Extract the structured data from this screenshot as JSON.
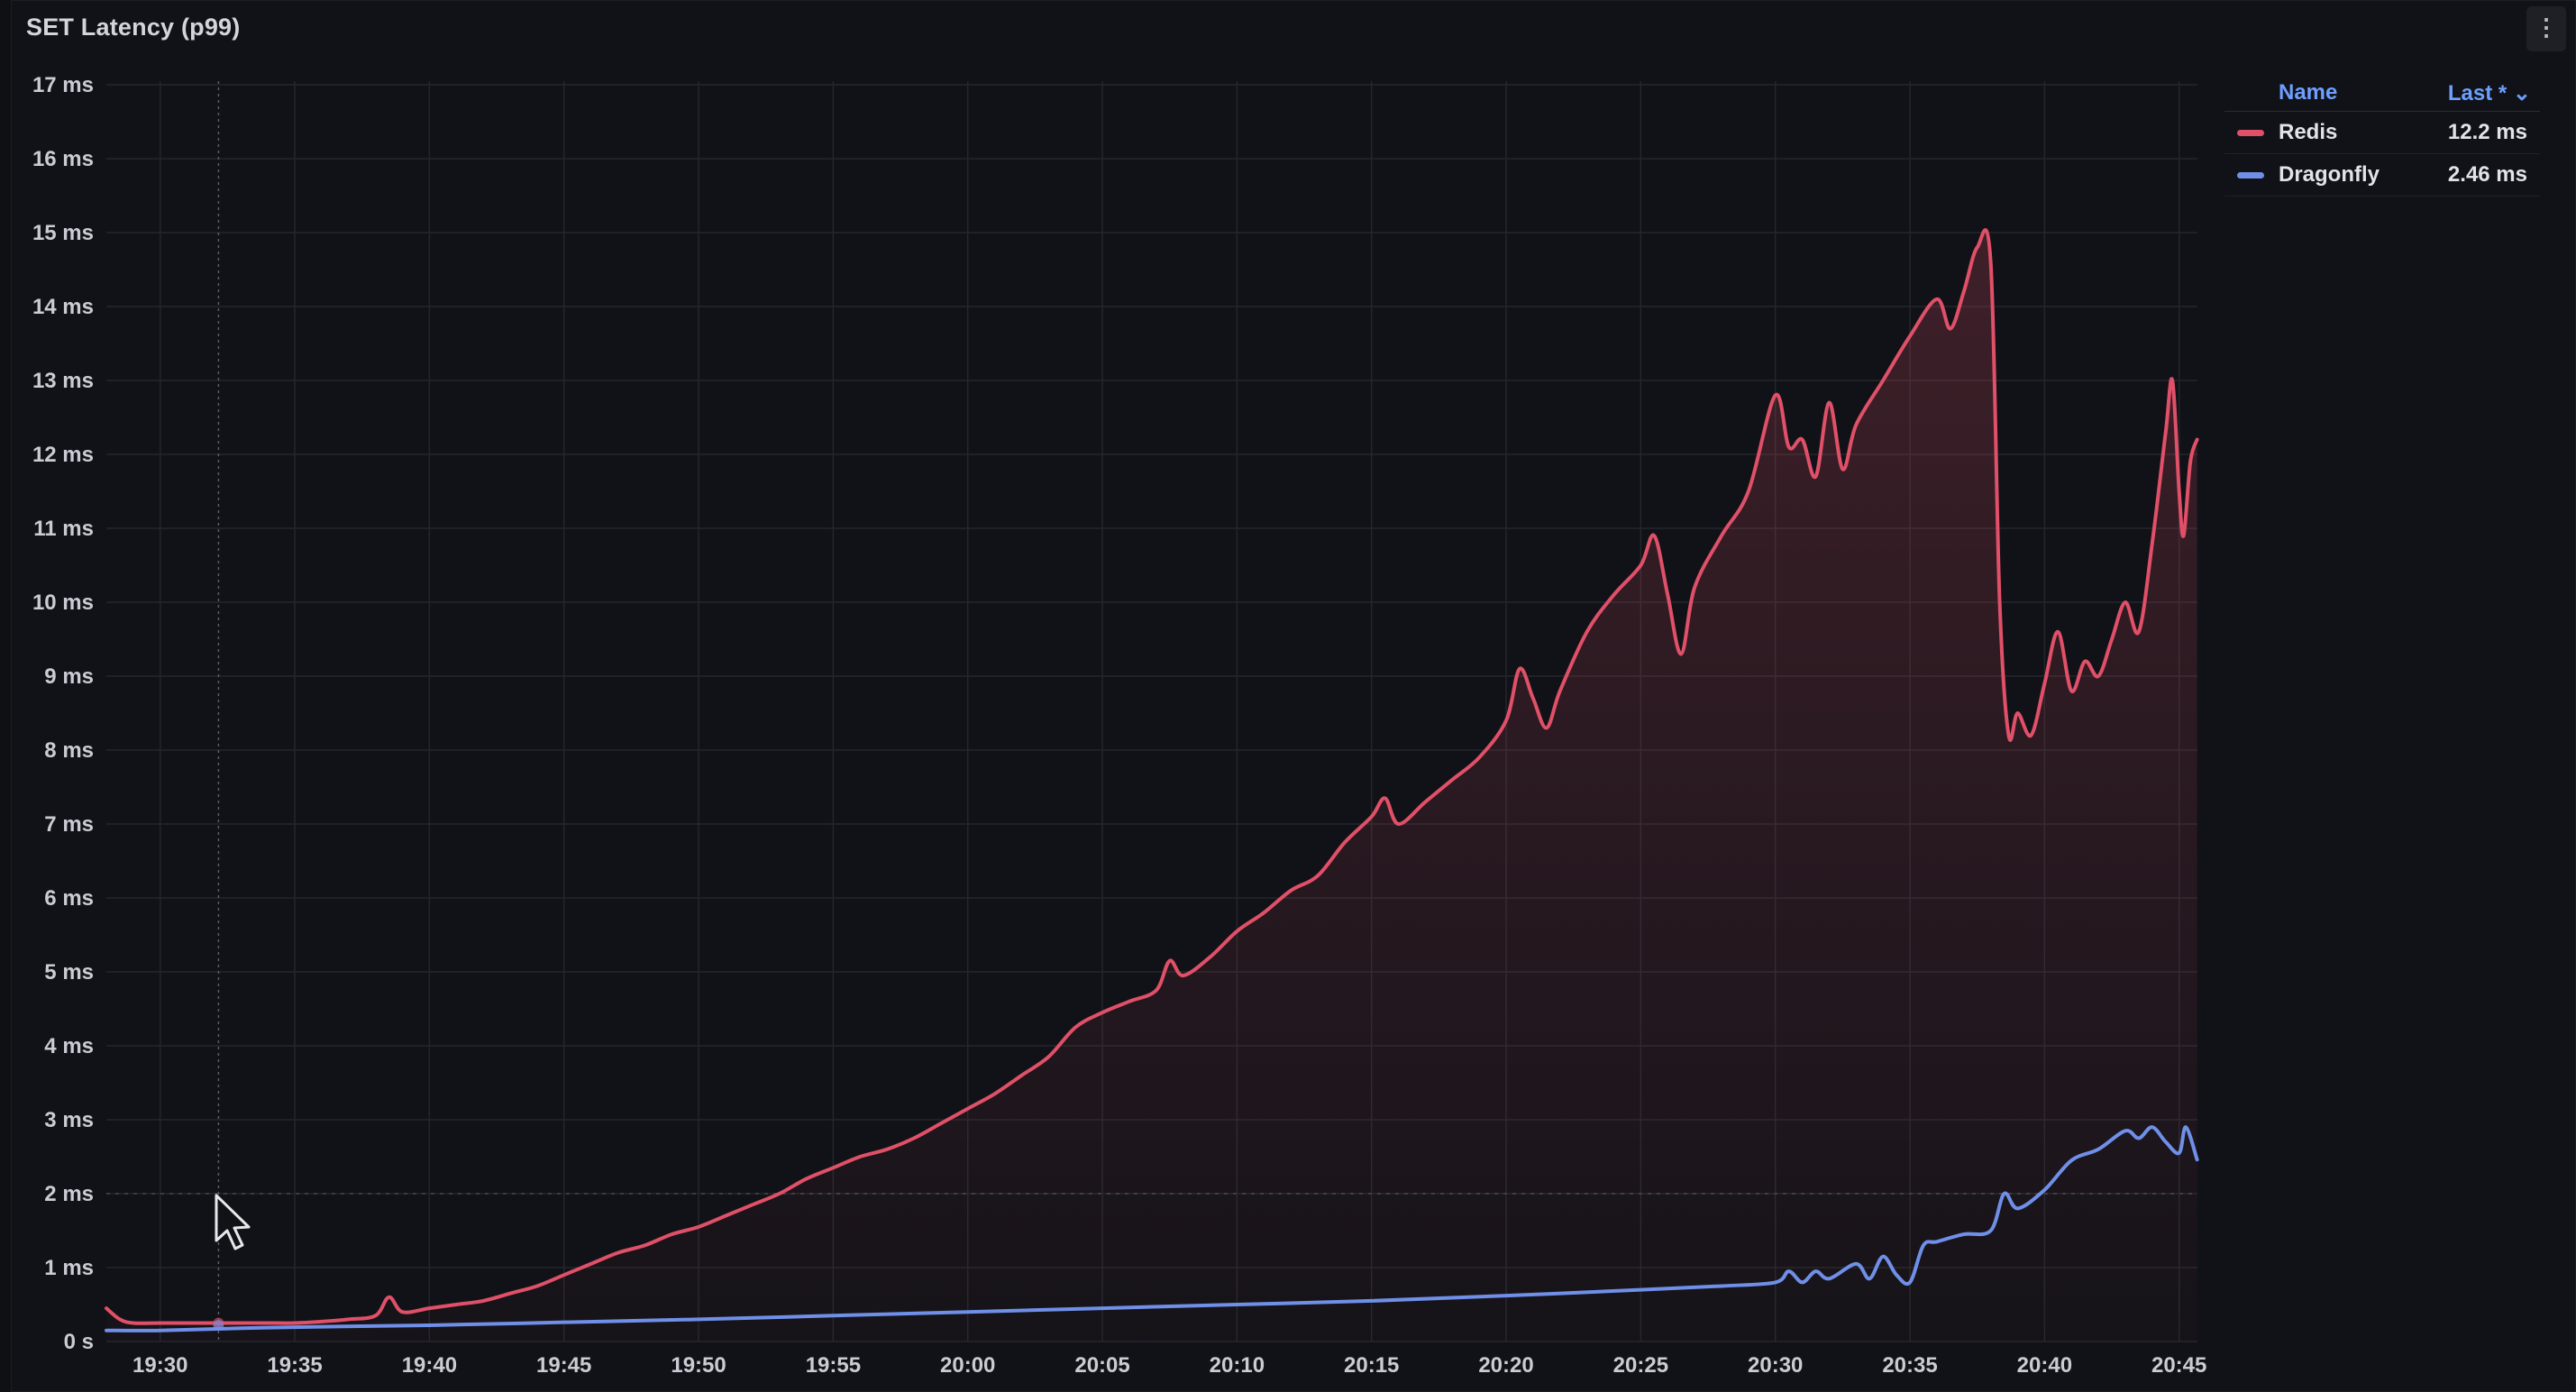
{
  "panel": {
    "title": "SET Latency (p99)",
    "menu_icon": "more-vertical-icon"
  },
  "legend": {
    "name_header": "Name",
    "last_header": "Last * ⌄",
    "items": [
      {
        "name": "Redis",
        "last": "12.2 ms",
        "color": "#e05068"
      },
      {
        "name": "Dragonfly",
        "last": "2.46 ms",
        "color": "#6f8fe8"
      }
    ]
  },
  "chart_data": {
    "type": "line",
    "title": "SET Latency (p99)",
    "xlabel": "",
    "ylabel": "",
    "x_unit": "time (HH:MM)",
    "y_unit": "ms",
    "xlim": [
      "19:28",
      "20:45"
    ],
    "ylim": [
      0,
      17
    ],
    "grid": true,
    "legend_position": "right",
    "y_ticks": [
      "0 s",
      "1 ms",
      "2 ms",
      "3 ms",
      "4 ms",
      "5 ms",
      "6 ms",
      "7 ms",
      "8 ms",
      "9 ms",
      "10 ms",
      "11 ms",
      "12 ms",
      "13 ms",
      "14 ms",
      "15 ms",
      "16 ms",
      "17 ms"
    ],
    "x_ticks": [
      "19:30",
      "19:35",
      "19:40",
      "19:45",
      "19:50",
      "19:55",
      "20:00",
      "20:05",
      "20:10",
      "20:15",
      "20:20",
      "20:25",
      "20:30",
      "20:35",
      "20:40",
      "20:45"
    ],
    "threshold": 2,
    "series": [
      {
        "name": "Redis",
        "color": "#e05068",
        "fill": true,
        "points": [
          [
            "19:28",
            0.45
          ],
          [
            "19:28:30",
            0.3
          ],
          [
            "19:29",
            0.25
          ],
          [
            "19:30",
            0.25
          ],
          [
            "19:31",
            0.25
          ],
          [
            "19:32",
            0.25
          ],
          [
            "19:33",
            0.25
          ],
          [
            "19:34",
            0.25
          ],
          [
            "19:35",
            0.25
          ],
          [
            "19:36",
            0.27
          ],
          [
            "19:37",
            0.3
          ],
          [
            "19:38",
            0.35
          ],
          [
            "19:38:30",
            0.6
          ],
          [
            "19:39",
            0.4
          ],
          [
            "19:40",
            0.45
          ],
          [
            "19:41",
            0.5
          ],
          [
            "19:42",
            0.55
          ],
          [
            "19:43",
            0.65
          ],
          [
            "19:44",
            0.75
          ],
          [
            "19:45",
            0.9
          ],
          [
            "19:46",
            1.05
          ],
          [
            "19:47",
            1.2
          ],
          [
            "19:48",
            1.3
          ],
          [
            "19:49",
            1.45
          ],
          [
            "19:50",
            1.55
          ],
          [
            "19:51",
            1.7
          ],
          [
            "19:52",
            1.85
          ],
          [
            "19:53",
            2.0
          ],
          [
            "19:54",
            2.2
          ],
          [
            "19:55",
            2.35
          ],
          [
            "19:56",
            2.5
          ],
          [
            "19:57",
            2.6
          ],
          [
            "19:58",
            2.75
          ],
          [
            "19:59",
            2.95
          ],
          [
            "20:00",
            3.15
          ],
          [
            "20:01",
            3.35
          ],
          [
            "20:02",
            3.6
          ],
          [
            "20:03",
            3.85
          ],
          [
            "20:04",
            4.25
          ],
          [
            "20:05",
            4.45
          ],
          [
            "20:06",
            4.6
          ],
          [
            "20:07",
            4.75
          ],
          [
            "20:07:30",
            5.15
          ],
          [
            "20:08",
            4.95
          ],
          [
            "20:09",
            5.2
          ],
          [
            "20:10",
            5.55
          ],
          [
            "20:11",
            5.8
          ],
          [
            "20:12",
            6.1
          ],
          [
            "20:13",
            6.3
          ],
          [
            "20:14",
            6.75
          ],
          [
            "20:15",
            7.1
          ],
          [
            "20:15:30",
            7.35
          ],
          [
            "20:16",
            7.0
          ],
          [
            "20:17",
            7.3
          ],
          [
            "20:18",
            7.6
          ],
          [
            "20:19",
            7.9
          ],
          [
            "20:20",
            8.4
          ],
          [
            "20:20:30",
            9.1
          ],
          [
            "20:21",
            8.7
          ],
          [
            "20:21:30",
            8.3
          ],
          [
            "20:22",
            8.8
          ],
          [
            "20:23",
            9.6
          ],
          [
            "20:24",
            10.1
          ],
          [
            "20:25",
            10.5
          ],
          [
            "20:25:30",
            10.9
          ],
          [
            "20:26",
            10.1
          ],
          [
            "20:26:30",
            9.3
          ],
          [
            "20:27",
            10.2
          ],
          [
            "20:28",
            10.9
          ],
          [
            "20:29",
            11.5
          ],
          [
            "20:30",
            12.8
          ],
          [
            "20:30:30",
            12.1
          ],
          [
            "20:31",
            12.2
          ],
          [
            "20:31:30",
            11.7
          ],
          [
            "20:32",
            12.7
          ],
          [
            "20:32:30",
            11.8
          ],
          [
            "20:33",
            12.4
          ],
          [
            "20:34",
            13.0
          ],
          [
            "20:35",
            13.6
          ],
          [
            "20:36",
            14.1
          ],
          [
            "20:36:30",
            13.7
          ],
          [
            "20:37",
            14.2
          ],
          [
            "20:37:30",
            14.8
          ],
          [
            "20:38",
            14.6
          ],
          [
            "20:38:20",
            10.0
          ],
          [
            "20:38:40",
            8.2
          ],
          [
            "20:39",
            8.5
          ],
          [
            "20:39:30",
            8.2
          ],
          [
            "20:40",
            8.9
          ],
          [
            "20:40:30",
            9.6
          ],
          [
            "20:41",
            8.8
          ],
          [
            "20:41:30",
            9.2
          ],
          [
            "20:42",
            9.0
          ],
          [
            "20:42:30",
            9.5
          ],
          [
            "20:43",
            10.0
          ],
          [
            "20:43:30",
            9.6
          ],
          [
            "20:44",
            10.8
          ],
          [
            "20:44:30",
            12.3
          ],
          [
            "20:44:45",
            13.0
          ],
          [
            "20:45",
            11.5
          ],
          [
            "20:45:10",
            10.9
          ],
          [
            "20:45:25",
            11.9
          ],
          [
            "20:45:40",
            12.2
          ]
        ]
      },
      {
        "name": "Dragonfly",
        "color": "#6f8fe8",
        "fill": false,
        "points": [
          [
            "19:28",
            0.15
          ],
          [
            "19:30",
            0.15
          ],
          [
            "19:33",
            0.18
          ],
          [
            "19:36",
            0.2
          ],
          [
            "19:40",
            0.22
          ],
          [
            "19:45",
            0.26
          ],
          [
            "19:50",
            0.3
          ],
          [
            "19:55",
            0.35
          ],
          [
            "20:00",
            0.4
          ],
          [
            "20:05",
            0.45
          ],
          [
            "20:10",
            0.5
          ],
          [
            "20:15",
            0.55
          ],
          [
            "20:20",
            0.62
          ],
          [
            "20:25",
            0.7
          ],
          [
            "20:28",
            0.75
          ],
          [
            "20:30",
            0.8
          ],
          [
            "20:30:30",
            0.95
          ],
          [
            "20:31",
            0.8
          ],
          [
            "20:31:30",
            0.95
          ],
          [
            "20:32",
            0.85
          ],
          [
            "20:33",
            1.05
          ],
          [
            "20:33:30",
            0.85
          ],
          [
            "20:34",
            1.15
          ],
          [
            "20:34:30",
            0.9
          ],
          [
            "20:35",
            0.8
          ],
          [
            "20:35:30",
            1.3
          ],
          [
            "20:36",
            1.35
          ],
          [
            "20:37",
            1.45
          ],
          [
            "20:38",
            1.5
          ],
          [
            "20:38:30",
            2.0
          ],
          [
            "20:39",
            1.8
          ],
          [
            "20:40",
            2.05
          ],
          [
            "20:41",
            2.45
          ],
          [
            "20:42",
            2.6
          ],
          [
            "20:43",
            2.85
          ],
          [
            "20:43:30",
            2.75
          ],
          [
            "20:44",
            2.9
          ],
          [
            "20:44:30",
            2.7
          ],
          [
            "20:45",
            2.55
          ],
          [
            "20:45:15",
            2.9
          ],
          [
            "20:45:40",
            2.46
          ]
        ]
      }
    ]
  },
  "cursor": {
    "icon": "mouse-pointer-icon"
  }
}
